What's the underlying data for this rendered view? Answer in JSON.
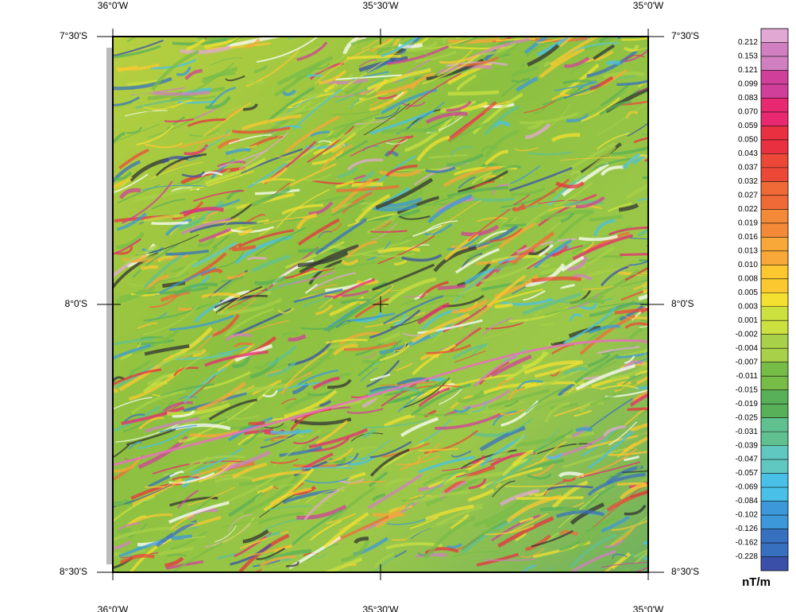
{
  "map": {
    "top_labels": [
      "36°0'W",
      "35°30'W",
      "35°0'W"
    ],
    "bottom_labels": [
      "36°0'W",
      "35°30'W",
      "35°0'W"
    ],
    "left_labels": [
      "7°30'S",
      "8°0'S",
      "8°30'S"
    ],
    "right_labels": [
      "7°30'S",
      "8°0'S",
      "8°30'S"
    ]
  },
  "colorbar": {
    "labels": [
      "0.212",
      "0.153",
      "0.121",
      "0.099",
      "0.083",
      "0.070",
      "0.059",
      "0.050",
      "0.043",
      "0.037",
      "0.032",
      "0.027",
      "0.022",
      "0.019",
      "0.016",
      "0.013",
      "0.010",
      "0.008",
      "0.005",
      "0.003",
      "0.001",
      "-0.002",
      "-0.004",
      "-0.007",
      "-0.011",
      "-0.015",
      "-0.019",
      "-0.025",
      "-0.031",
      "-0.039",
      "-0.047",
      "-0.057",
      "-0.069",
      "-0.084",
      "-0.102",
      "-0.126",
      "-0.162",
      "-0.228"
    ],
    "unit": "nT/m"
  }
}
